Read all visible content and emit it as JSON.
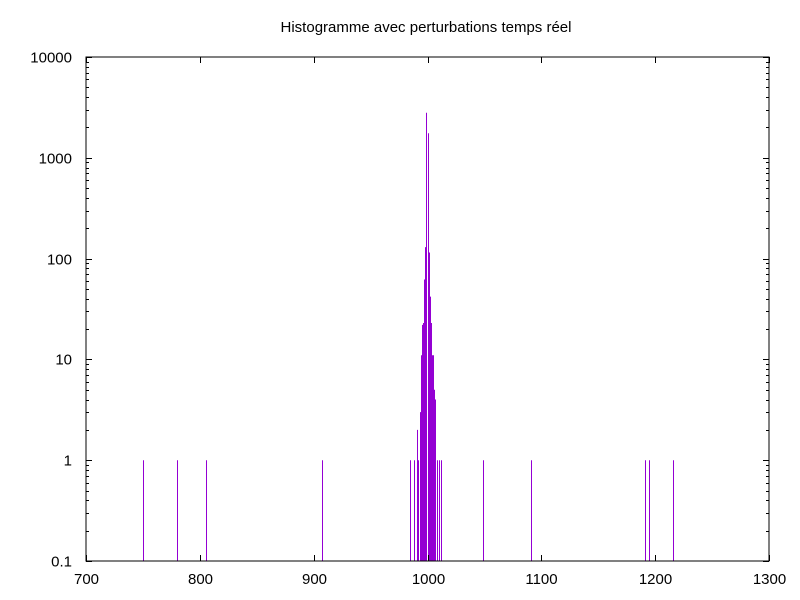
{
  "chart_data": {
    "type": "bar",
    "title": "Histogramme avec perturbations temps réel",
    "xlabel": "",
    "ylabel": "",
    "x_scale": "linear",
    "y_scale": "log",
    "xlim": [
      700,
      1300
    ],
    "ylim": [
      0.1,
      10000
    ],
    "x_ticks": [
      700,
      800,
      900,
      1000,
      1100,
      1200,
      1300
    ],
    "x_tick_labels": [
      "700",
      "800",
      "900",
      "1000",
      "1100",
      "1200",
      "1300"
    ],
    "y_ticks": [
      0.1,
      1,
      10,
      100,
      1000,
      10000
    ],
    "y_tick_labels": [
      "0.1",
      "1",
      "10",
      "100",
      "1000",
      "10000"
    ],
    "grid": false,
    "legend": "none",
    "bar_color": "#9400d3",
    "series": [
      {
        "x": [
          750,
          780,
          805,
          907,
          985,
          988,
          991,
          992,
          993,
          994,
          995,
          996,
          997,
          998,
          999,
          1000,
          1001,
          1002,
          1003,
          1004,
          1005,
          1006,
          1007,
          1008,
          1010,
          1012,
          1049,
          1091,
          1191,
          1195,
          1216
        ],
        "values": [
          1,
          1,
          1,
          1,
          1,
          1,
          2,
          1,
          3,
          11,
          22,
          23,
          62,
          130,
          2800,
          1750,
          115,
          42,
          23,
          11,
          11,
          5,
          4,
          1,
          1,
          1,
          1,
          1,
          1,
          1,
          1
        ]
      }
    ]
  }
}
